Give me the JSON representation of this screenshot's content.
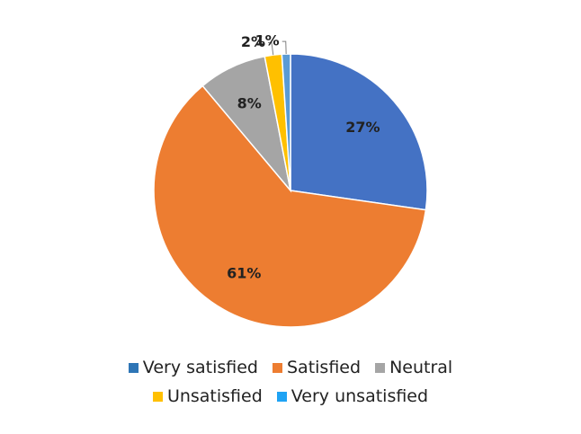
{
  "chart_data": {
    "type": "pie",
    "title": "",
    "categories": [
      "Very satisfied",
      "Satisfied",
      "Neutral",
      "Unsatisfied",
      "Very unsatisfied"
    ],
    "values": [
      27,
      61,
      8,
      2,
      1
    ],
    "labels": [
      "27%",
      "61%",
      "8%",
      "2%",
      "1%"
    ],
    "slice_colors": [
      "#4472c4",
      "#ed7d31",
      "#a5a5a5",
      "#ffc000",
      "#5b9bd5"
    ],
    "legend_colors": [
      "#2e75b6",
      "#ed7d31",
      "#a5a5a5",
      "#ffc000",
      "#1fa3f4"
    ],
    "legend_position": "bottom",
    "start_angle_deg": 0,
    "direction": "clockwise"
  }
}
